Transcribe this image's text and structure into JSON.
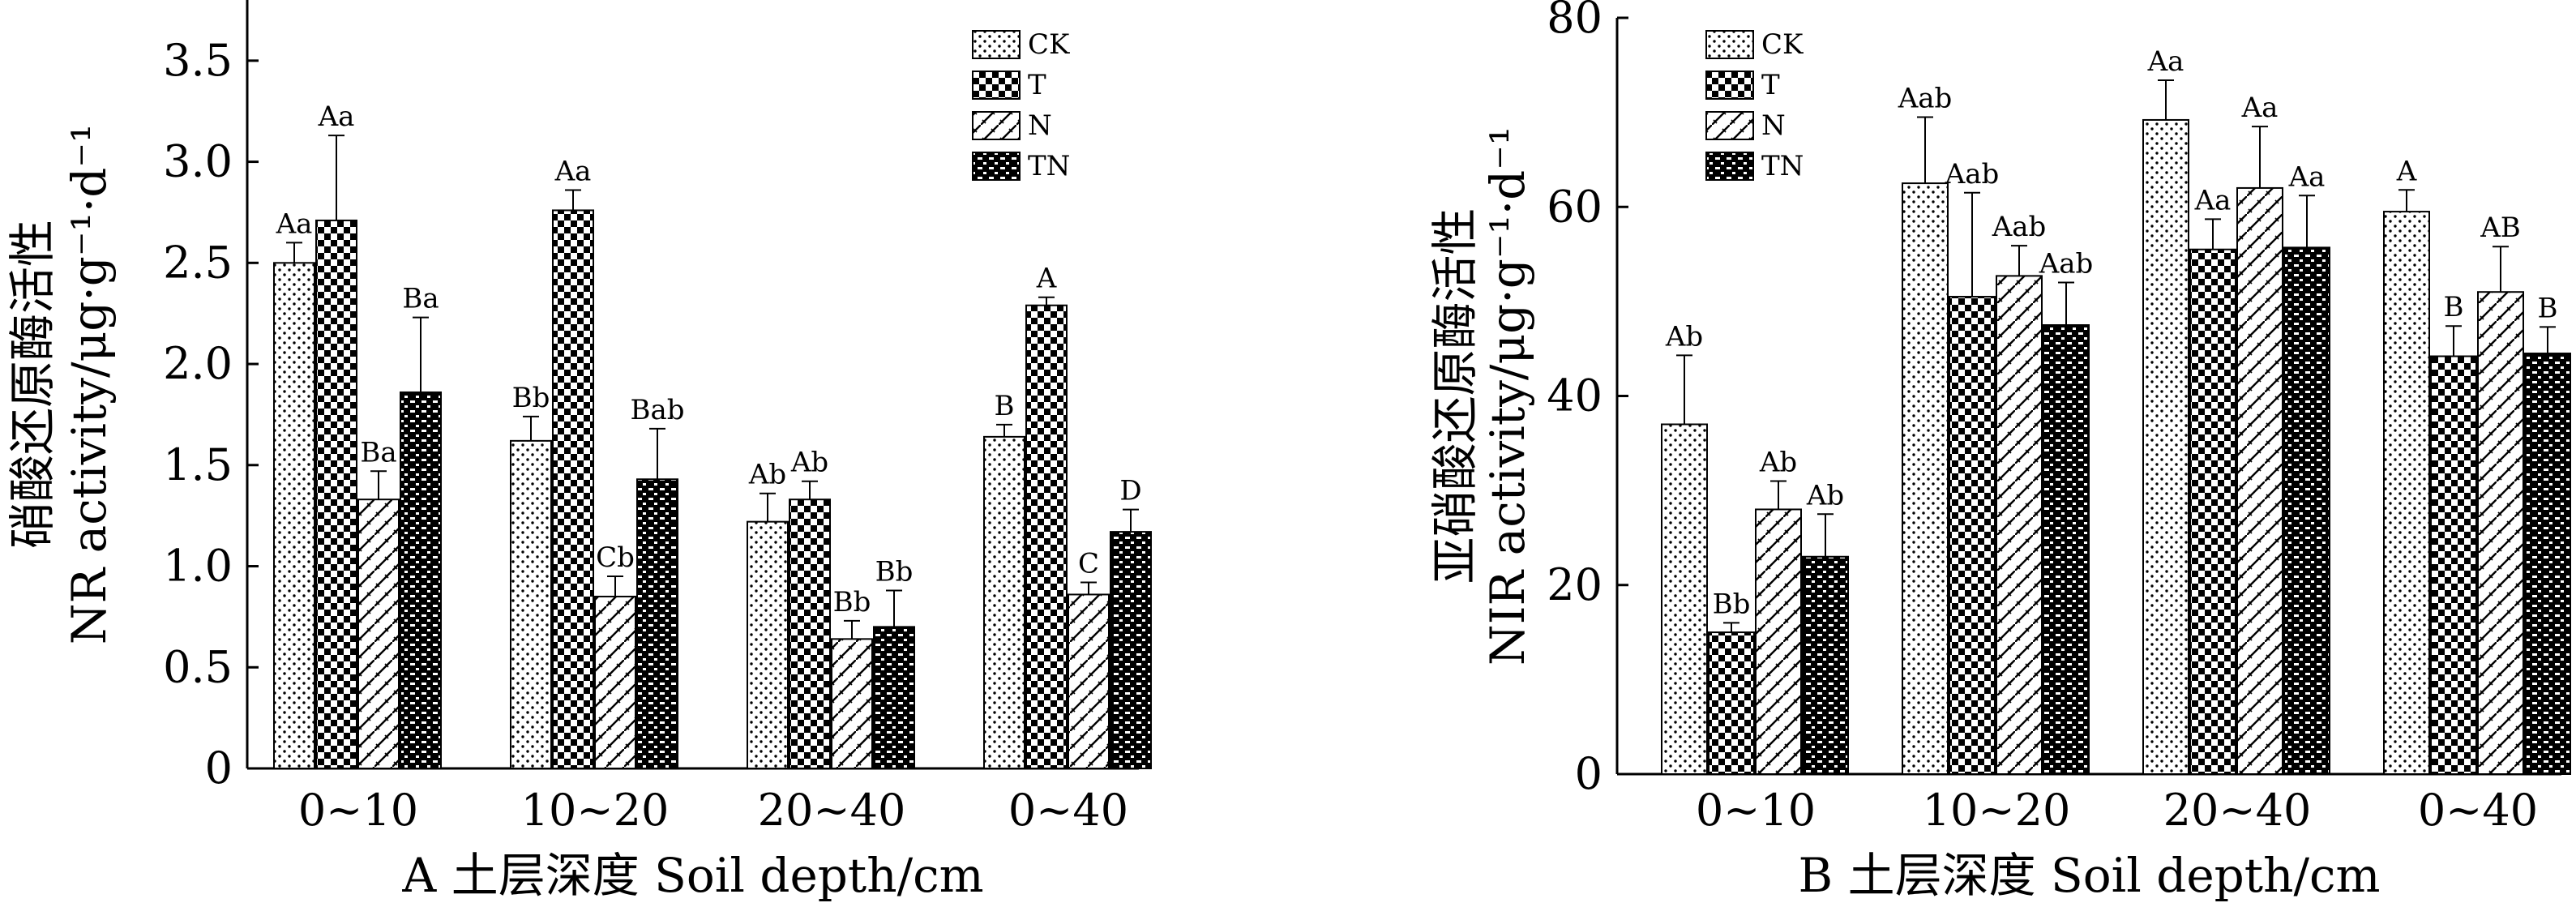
{
  "chart_data": [
    {
      "type": "bar",
      "panel": "A",
      "xlabel": "A 土层深度 Soil depth/cm",
      "ylabel_line1": "硝酸还原酶活性",
      "ylabel_line2": "NR activity/μg·g⁻¹·d⁻¹",
      "ylim": [
        0,
        3.8
      ],
      "yticks": [
        "0",
        "0.5",
        "1.0",
        "1.5",
        "2.0",
        "2.5",
        "3.0",
        "3.5"
      ],
      "categories": [
        "0~10",
        "10~20",
        "20~40",
        "0~40"
      ],
      "legend_position": "top-right",
      "series": [
        {
          "name": "CK",
          "values": [
            2.5,
            1.62,
            1.22,
            1.64
          ],
          "errors": [
            0.1,
            0.12,
            0.14,
            0.06
          ],
          "labels": [
            "Aa",
            "Bb",
            "Ab",
            "B"
          ]
        },
        {
          "name": "T",
          "values": [
            2.71,
            2.76,
            1.33,
            2.29
          ],
          "errors": [
            0.42,
            0.1,
            0.09,
            0.04
          ],
          "labels": [
            "Aa",
            "Aa",
            "Ab",
            "A"
          ]
        },
        {
          "name": "N",
          "values": [
            1.33,
            0.85,
            0.64,
            0.86
          ],
          "errors": [
            0.14,
            0.1,
            0.09,
            0.06
          ],
          "labels": [
            "Ba",
            "Cb",
            "Bb",
            "C"
          ]
        },
        {
          "name": "TN",
          "values": [
            1.86,
            1.43,
            0.7,
            1.17
          ],
          "errors": [
            0.37,
            0.25,
            0.18,
            0.11
          ],
          "labels": [
            "Ba",
            "Bab",
            "Bb",
            "D"
          ]
        }
      ]
    },
    {
      "type": "bar",
      "panel": "B",
      "xlabel": "B 土层深度 Soil depth/cm",
      "ylabel_line1": "亚硝酸还原酶活性",
      "ylabel_line2": "NIR activity/μg·g⁻¹·d⁻¹",
      "ylim": [
        0,
        80
      ],
      "yticks": [
        "0",
        "20",
        "40",
        "60",
        "80"
      ],
      "categories": [
        "0~10",
        "10~20",
        "20~40",
        "0~40"
      ],
      "legend_position": "top-left",
      "series": [
        {
          "name": "CK",
          "values": [
            37.0,
            62.5,
            69.2,
            59.5
          ],
          "errors": [
            7.3,
            7.0,
            4.2,
            2.3
          ],
          "labels": [
            "Ab",
            "Aab",
            "Aa",
            "A"
          ]
        },
        {
          "name": "T",
          "values": [
            15.0,
            50.5,
            55.5,
            44.2
          ],
          "errors": [
            1.0,
            11.0,
            3.2,
            3.2
          ],
          "labels": [
            "Bb",
            "Aab",
            "Aa",
            "B"
          ]
        },
        {
          "name": "N",
          "values": [
            28.0,
            52.7,
            62.0,
            51.0
          ],
          "errors": [
            3.0,
            3.2,
            6.5,
            4.8
          ],
          "labels": [
            "Ab",
            "Aab",
            "Aa",
            "AB"
          ]
        },
        {
          "name": "TN",
          "values": [
            23.0,
            47.5,
            55.7,
            44.5
          ],
          "errors": [
            4.5,
            4.5,
            5.5,
            2.8
          ],
          "labels": [
            "Ab",
            "Aab",
            "Aa",
            "B"
          ]
        }
      ]
    }
  ]
}
